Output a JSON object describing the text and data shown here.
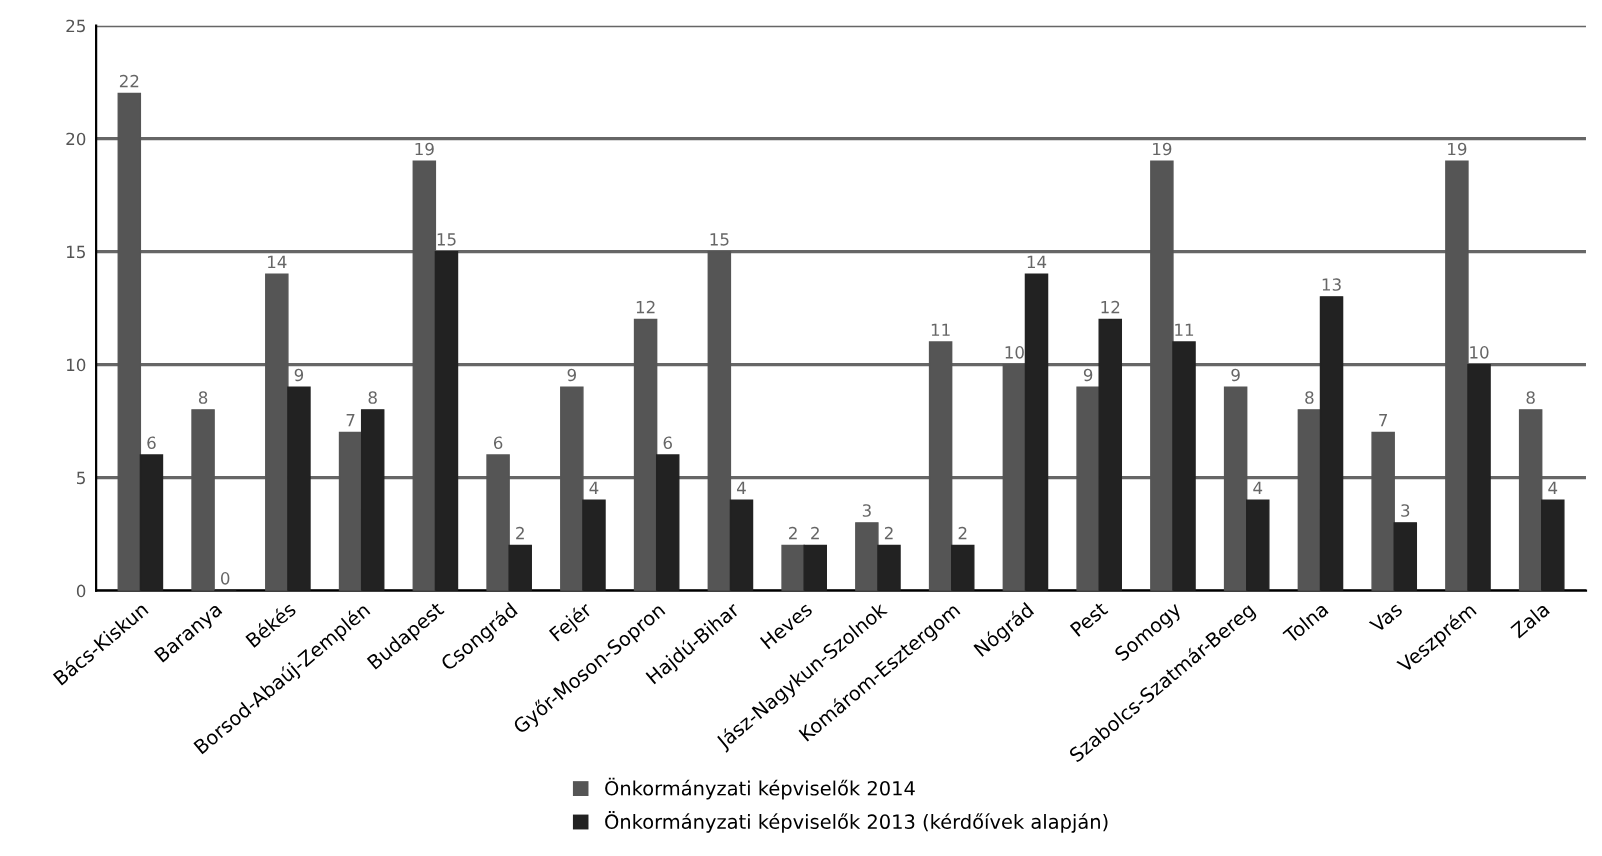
{
  "chart_data": {
    "type": "bar",
    "categories": [
      "Bács-Kiskun",
      "Baranya",
      "Békés",
      "Borsod-Abaúj-Zemplén",
      "Budapest",
      "Csongrád",
      "Fejér",
      "Győr-Moson-Sopron",
      "Hajdú-Bihar",
      "Heves",
      "Jász-Nagykun-Szolnok",
      "Komárom-Esztergom",
      "Nógrád",
      "Pest",
      "Somogy",
      "Szabolcs-Szatmár-Bereg",
      "Tolna",
      "Vas",
      "Veszprém",
      "Zala"
    ],
    "series": [
      {
        "name": "Önkormányzati képviselők 2014",
        "color": "#555555",
        "values": [
          22,
          8,
          14,
          7,
          19,
          6,
          9,
          12,
          15,
          2,
          3,
          11,
          10,
          9,
          19,
          9,
          8,
          7,
          19,
          8
        ]
      },
      {
        "name": "Önkormányzati képviselők 2013 (kérdőívek alapján)",
        "color": "#222222",
        "values": [
          6,
          0,
          9,
          8,
          15,
          2,
          4,
          6,
          4,
          2,
          2,
          2,
          14,
          12,
          11,
          4,
          13,
          3,
          10,
          4
        ]
      }
    ],
    "ylim": [
      0,
      25
    ],
    "yticks": [
      0,
      5,
      10,
      15,
      20,
      25
    ],
    "grid": "y",
    "legend": "bottom",
    "data_labels": true
  }
}
